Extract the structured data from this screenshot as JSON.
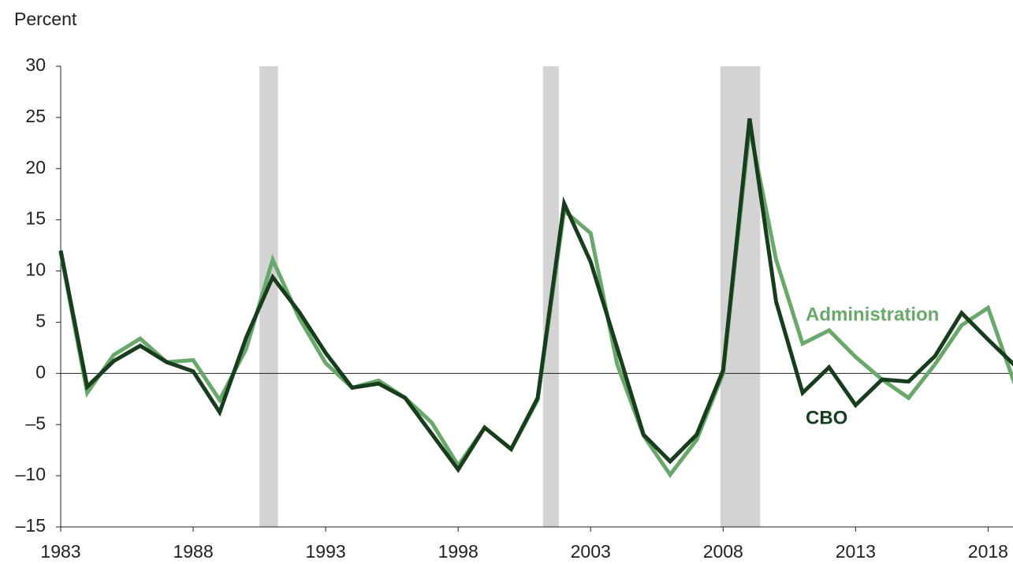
{
  "chart_data": {
    "type": "line",
    "y_label": "Percent",
    "x": [
      1983,
      1984,
      1985,
      1986,
      1987,
      1988,
      1989,
      1990,
      1991,
      1992,
      1993,
      1994,
      1995,
      1996,
      1997,
      1998,
      1999,
      2000,
      2001,
      2002,
      2003,
      2004,
      2005,
      2006,
      2007,
      2008,
      2009,
      2010,
      2011,
      2012,
      2013,
      2014,
      2015,
      2016,
      2017,
      2018,
      2019
    ],
    "series": [
      {
        "name": "Administration",
        "color": "#68a86a",
        "values": [
          11.8,
          -1.9,
          1.8,
          3.4,
          1.1,
          1.3,
          -2.6,
          2.4,
          11.1,
          5.4,
          1.0,
          -1.4,
          -0.7,
          -2.4,
          -4.8,
          -9.0,
          -5.3,
          -7.4,
          -2.6,
          15.9,
          13.7,
          0.9,
          -6.1,
          -9.9,
          -6.5,
          0.0,
          24.0,
          11.1,
          2.9,
          4.2,
          1.6,
          -0.6,
          -2.4,
          0.9,
          4.7,
          6.4,
          -1.0
        ]
      },
      {
        "name": "CBO",
        "color": "#173d1c",
        "values": [
          12.0,
          -1.3,
          1.2,
          2.7,
          1.1,
          0.2,
          -3.8,
          3.5,
          9.4,
          6.0,
          2.0,
          -1.4,
          -1.0,
          -2.4,
          -5.9,
          -9.4,
          -5.3,
          -7.4,
          -2.4,
          16.6,
          10.9,
          2.5,
          -6.0,
          -8.6,
          -6.0,
          0.3,
          24.9,
          7.0,
          -1.9,
          0.6,
          -3.1,
          -0.6,
          -0.8,
          1.7,
          5.9,
          3.3,
          0.8
        ]
      }
    ],
    "shaded_periods": [
      [
        1990.5,
        1991.2
      ],
      [
        2001.2,
        2001.8
      ],
      [
        2007.9,
        2009.4
      ]
    ],
    "shade_color": "#d3d3d3",
    "xlim": [
      1983,
      2019
    ],
    "xticks": [
      1983,
      1988,
      1993,
      1998,
      2003,
      2008,
      2013,
      2018
    ],
    "ylim": [
      -15,
      30
    ],
    "yticks": [
      {
        "value": -15,
        "label": "–15"
      },
      {
        "value": -10,
        "label": "–10"
      },
      {
        "value": -5,
        "label": "–5"
      },
      0,
      5,
      10,
      15,
      20,
      25,
      30
    ]
  }
}
